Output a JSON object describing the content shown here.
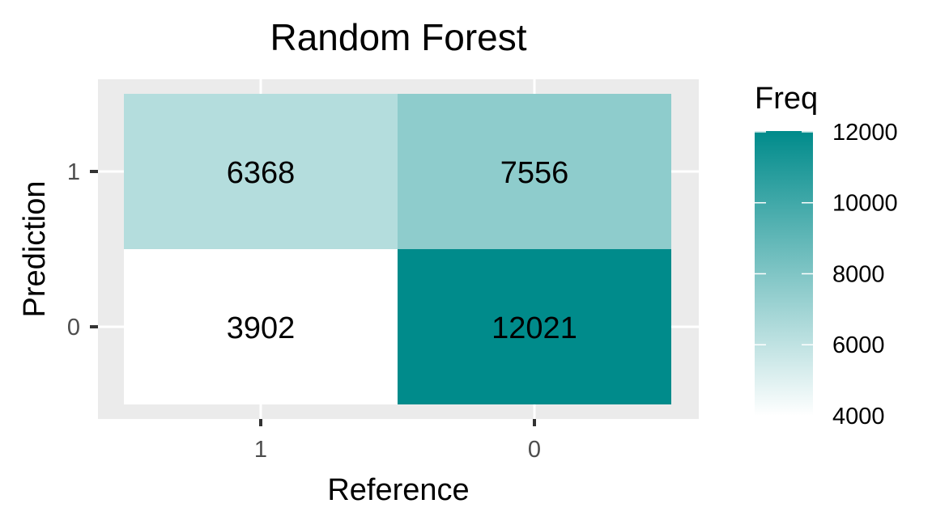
{
  "chart_data": {
    "type": "heatmap",
    "title": "Random Forest",
    "xlabel": "Reference",
    "ylabel": "Prediction",
    "x_categories": [
      "1",
      "0"
    ],
    "y_categories": [
      "1",
      "0"
    ],
    "cells": [
      {
        "reference": "1",
        "prediction": "1",
        "value": 6368,
        "label": "6368"
      },
      {
        "reference": "0",
        "prediction": "1",
        "value": 7556,
        "label": "7556"
      },
      {
        "reference": "1",
        "prediction": "0",
        "value": 3902,
        "label": "3902"
      },
      {
        "reference": "0",
        "prediction": "0",
        "value": 12021,
        "label": "12021"
      }
    ],
    "legend": {
      "title": "Freq",
      "ticks": [
        4000,
        6000,
        8000,
        10000,
        12000
      ],
      "tick_labels": [
        "4000",
        "6000",
        "8000",
        "10000",
        "12000"
      ],
      "color_range": [
        4000,
        12021
      ],
      "color_low": "#ffffff",
      "color_high": "#008b8b",
      "placement": "right"
    },
    "panel_background": "#ebebeb",
    "grid": true
  }
}
